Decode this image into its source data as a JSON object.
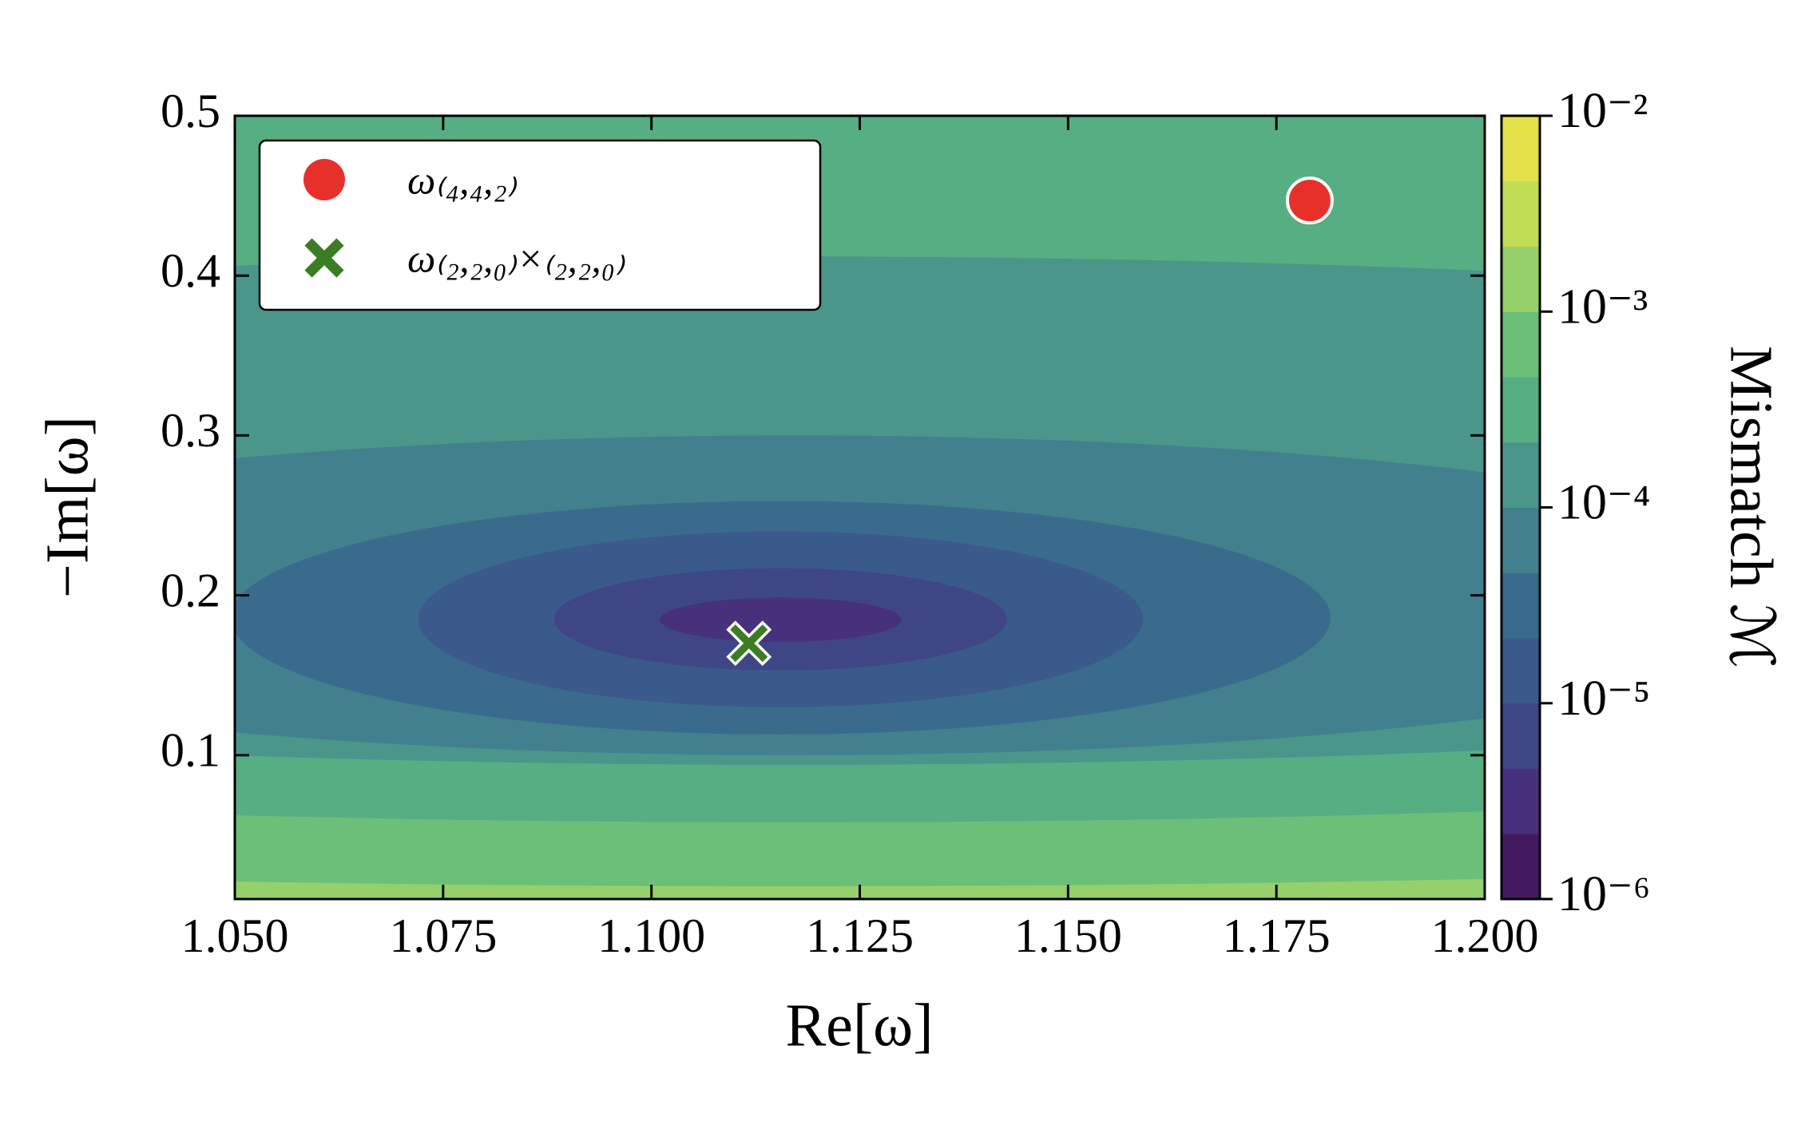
{
  "chart_data": {
    "type": "contour",
    "xlabel": "Re[ω]",
    "ylabel": "−Im[ω]",
    "xlim": [
      1.05,
      1.2
    ],
    "ylim": [
      0.01,
      0.5
    ],
    "xticks": [
      {
        "value": 1.05,
        "label": "1.050"
      },
      {
        "value": 1.075,
        "label": "1.075"
      },
      {
        "value": 1.1,
        "label": "1.100"
      },
      {
        "value": 1.125,
        "label": "1.125"
      },
      {
        "value": 1.15,
        "label": "1.150"
      },
      {
        "value": 1.175,
        "label": "1.175"
      },
      {
        "value": 1.2,
        "label": "1.200"
      }
    ],
    "yticks": [
      0.1,
      0.2,
      0.3,
      0.4,
      0.5
    ],
    "colorbar": {
      "label": "Mismatch ℳ",
      "scale": "log",
      "zlim": [
        1e-06,
        0.01
      ],
      "ticks": [
        {
          "value": 1e-06,
          "label": "10⁻⁶"
        },
        {
          "value": 1e-05,
          "label": "10⁻⁵"
        },
        {
          "value": 0.0001,
          "label": "10⁻⁴"
        },
        {
          "value": 0.001,
          "label": "10⁻³"
        },
        {
          "value": 0.01,
          "label": "10⁻²"
        }
      ],
      "levels": [
        1e-06,
        2.154e-06,
        4.642e-06,
        1e-05,
        2.154e-05,
        4.642e-05,
        0.0001,
        0.0002154,
        0.0004642,
        0.001,
        0.002154,
        0.004642,
        0.01
      ],
      "colors": [
        "#431a5f",
        "#47307c",
        "#3f4686",
        "#3a5a8c",
        "#3a6b8d",
        "#42808d",
        "#4a968a",
        "#56ae83",
        "#6bbf78",
        "#95d06a",
        "#c1dc55",
        "#e4e14a"
      ]
    },
    "background_level": 0.001,
    "contours": [
      {
        "level": 0.0004642,
        "cx": 1.117,
        "cy": 0.35,
        "rx": 0.5,
        "ry": 0.332
      },
      {
        "level": 0.0002154,
        "cx": 1.117,
        "cy": 0.3,
        "rx": 0.35,
        "ry": 0.242
      },
      {
        "level": 0.0001,
        "cx": 1.117,
        "cy": 0.253,
        "rx": 0.25,
        "ry": 0.159
      },
      {
        "level": 4.642e-05,
        "cx": 1.117,
        "cy": 0.2,
        "rx": 0.13,
        "ry": 0.1
      },
      {
        "level": 2.154e-05,
        "cx": 1.1155,
        "cy": 0.186,
        "rx": 0.066,
        "ry": 0.073
      },
      {
        "level": 1e-05,
        "cx": 1.1155,
        "cy": 0.185,
        "rx": 0.0435,
        "ry": 0.055
      },
      {
        "level": 4.642e-06,
        "cx": 1.1155,
        "cy": 0.185,
        "rx": 0.0272,
        "ry": 0.032
      },
      {
        "level": 2.154e-06,
        "cx": 1.1155,
        "cy": 0.1847,
        "rx": 0.0145,
        "ry": 0.0139
      }
    ],
    "series": [
      {
        "name": "ω₍₄,₄,₂₎",
        "marker": "circle",
        "color": "#e8302a",
        "x": [
          1.179
        ],
        "y": [
          0.447
        ]
      },
      {
        "name": "ω₍₂,₂,₀₎×₍₂,₂,₀₎",
        "marker": "x",
        "color": "#3a7d22",
        "x": [
          1.1117
        ],
        "y": [
          0.17
        ]
      }
    ]
  }
}
